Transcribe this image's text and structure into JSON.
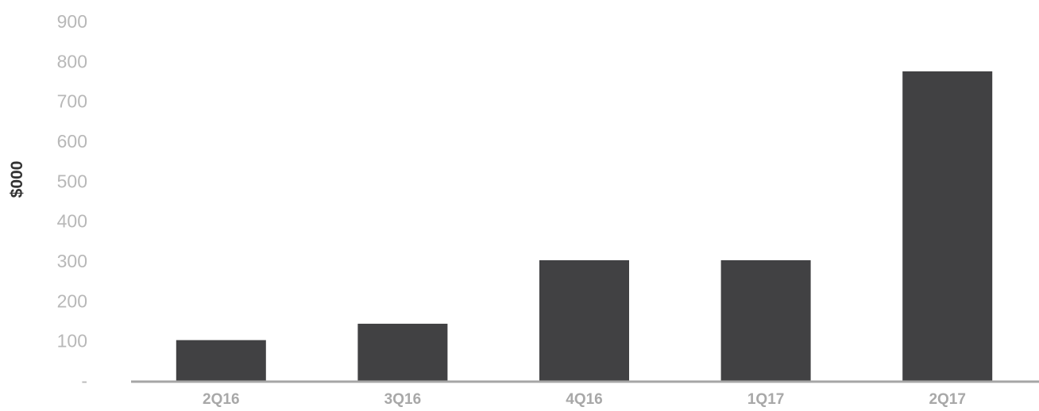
{
  "chart_data": {
    "type": "bar",
    "title": "",
    "xlabel": "",
    "ylabel": "$000",
    "categories": [
      "2Q16",
      "3Q16",
      "4Q16",
      "1Q17",
      "2Q17"
    ],
    "values": [
      102,
      143,
      302,
      302,
      775
    ],
    "ylim": [
      0,
      900
    ],
    "yticks": [
      0,
      100,
      200,
      300,
      400,
      500,
      600,
      700,
      800,
      900
    ],
    "ytick_labels": [
      "-",
      "100",
      "200",
      "300",
      "400",
      "500",
      "600",
      "700",
      "800",
      "900"
    ],
    "grid": false,
    "legend": "none",
    "bar_color": "#414143",
    "axis_color": "#a6a6a6"
  }
}
